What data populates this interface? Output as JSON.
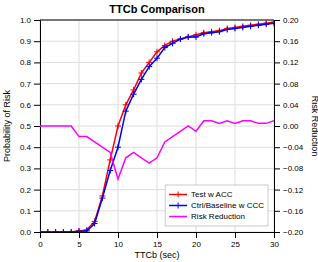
{
  "chart_data": {
    "type": "line",
    "title": "TTCb Comparison",
    "xlabel": "TTCb (sec)",
    "ylabel": "Probability of Risk",
    "y2label": "Risk Reduction",
    "x": [
      0,
      1,
      2,
      3,
      4,
      5,
      6,
      7,
      8,
      9,
      10,
      11,
      12,
      13,
      14,
      15,
      16,
      17,
      18,
      19,
      20,
      21,
      22,
      23,
      24,
      25,
      26,
      27,
      28,
      29,
      30
    ],
    "series": [
      {
        "name": "Test w ACC",
        "color": "#ff0000",
        "marker": "plus",
        "values": [
          0.0,
          0.0,
          0.0,
          0.0,
          0.0,
          0.005,
          0.01,
          0.05,
          0.17,
          0.34,
          0.5,
          0.6,
          0.67,
          0.75,
          0.8,
          0.85,
          0.88,
          0.9,
          0.91,
          0.92,
          0.93,
          0.94,
          0.945,
          0.95,
          0.96,
          0.965,
          0.97,
          0.975,
          0.98,
          0.985,
          0.99
        ]
      },
      {
        "name": "Ctrl/Baseline w CCC",
        "color": "#0000ff",
        "marker": "plus",
        "values": [
          0.0,
          0.0,
          0.0,
          0.0,
          0.0,
          0.003,
          0.005,
          0.04,
          0.16,
          0.29,
          0.4,
          0.57,
          0.65,
          0.72,
          0.78,
          0.82,
          0.87,
          0.89,
          0.91,
          0.92,
          0.92,
          0.935,
          0.94,
          0.945,
          0.955,
          0.96,
          0.965,
          0.97,
          0.975,
          0.98,
          0.985
        ]
      },
      {
        "name": "Risk Reduction",
        "color": "#ff00ff",
        "axis": "y2",
        "values": [
          0.0,
          0.0,
          0.0,
          0.0,
          0.0,
          -0.02,
          -0.02,
          -0.03,
          -0.04,
          -0.05,
          -0.1,
          -0.06,
          -0.05,
          -0.06,
          -0.07,
          -0.06,
          -0.03,
          -0.02,
          -0.01,
          0.0,
          -0.01,
          0.01,
          0.01,
          0.005,
          0.01,
          0.005,
          0.01,
          0.01,
          0.005,
          0.005,
          0.01
        ]
      }
    ],
    "xlim": [
      0,
      30
    ],
    "xticks": [
      0,
      5,
      10,
      15,
      20,
      25,
      30
    ],
    "ylim": [
      0.0,
      1.0
    ],
    "yticks": [
      {
        "value": 0.0,
        "label": "0.0"
      },
      0.1,
      0.2,
      0.3,
      0.4,
      0.5,
      0.6,
      0.7,
      0.8,
      0.9,
      {
        "value": 1.0,
        "label": "1.0"
      }
    ],
    "y2lim": [
      -0.2,
      0.2
    ],
    "y2ticks": [
      {
        "value": -0.2,
        "label": "−0.20"
      },
      {
        "value": -0.16,
        "label": "−0.16"
      },
      {
        "value": -0.12,
        "label": "−0.12"
      },
      {
        "value": -0.08,
        "label": "−0.08"
      },
      {
        "value": -0.04,
        "label": "−0.04"
      },
      {
        "value": 0.0,
        "label": "0.00"
      },
      0.04,
      0.08,
      0.12,
      0.16,
      {
        "value": 0.2,
        "label": "0.20"
      }
    ],
    "grid": true,
    "legend": "lower right"
  }
}
